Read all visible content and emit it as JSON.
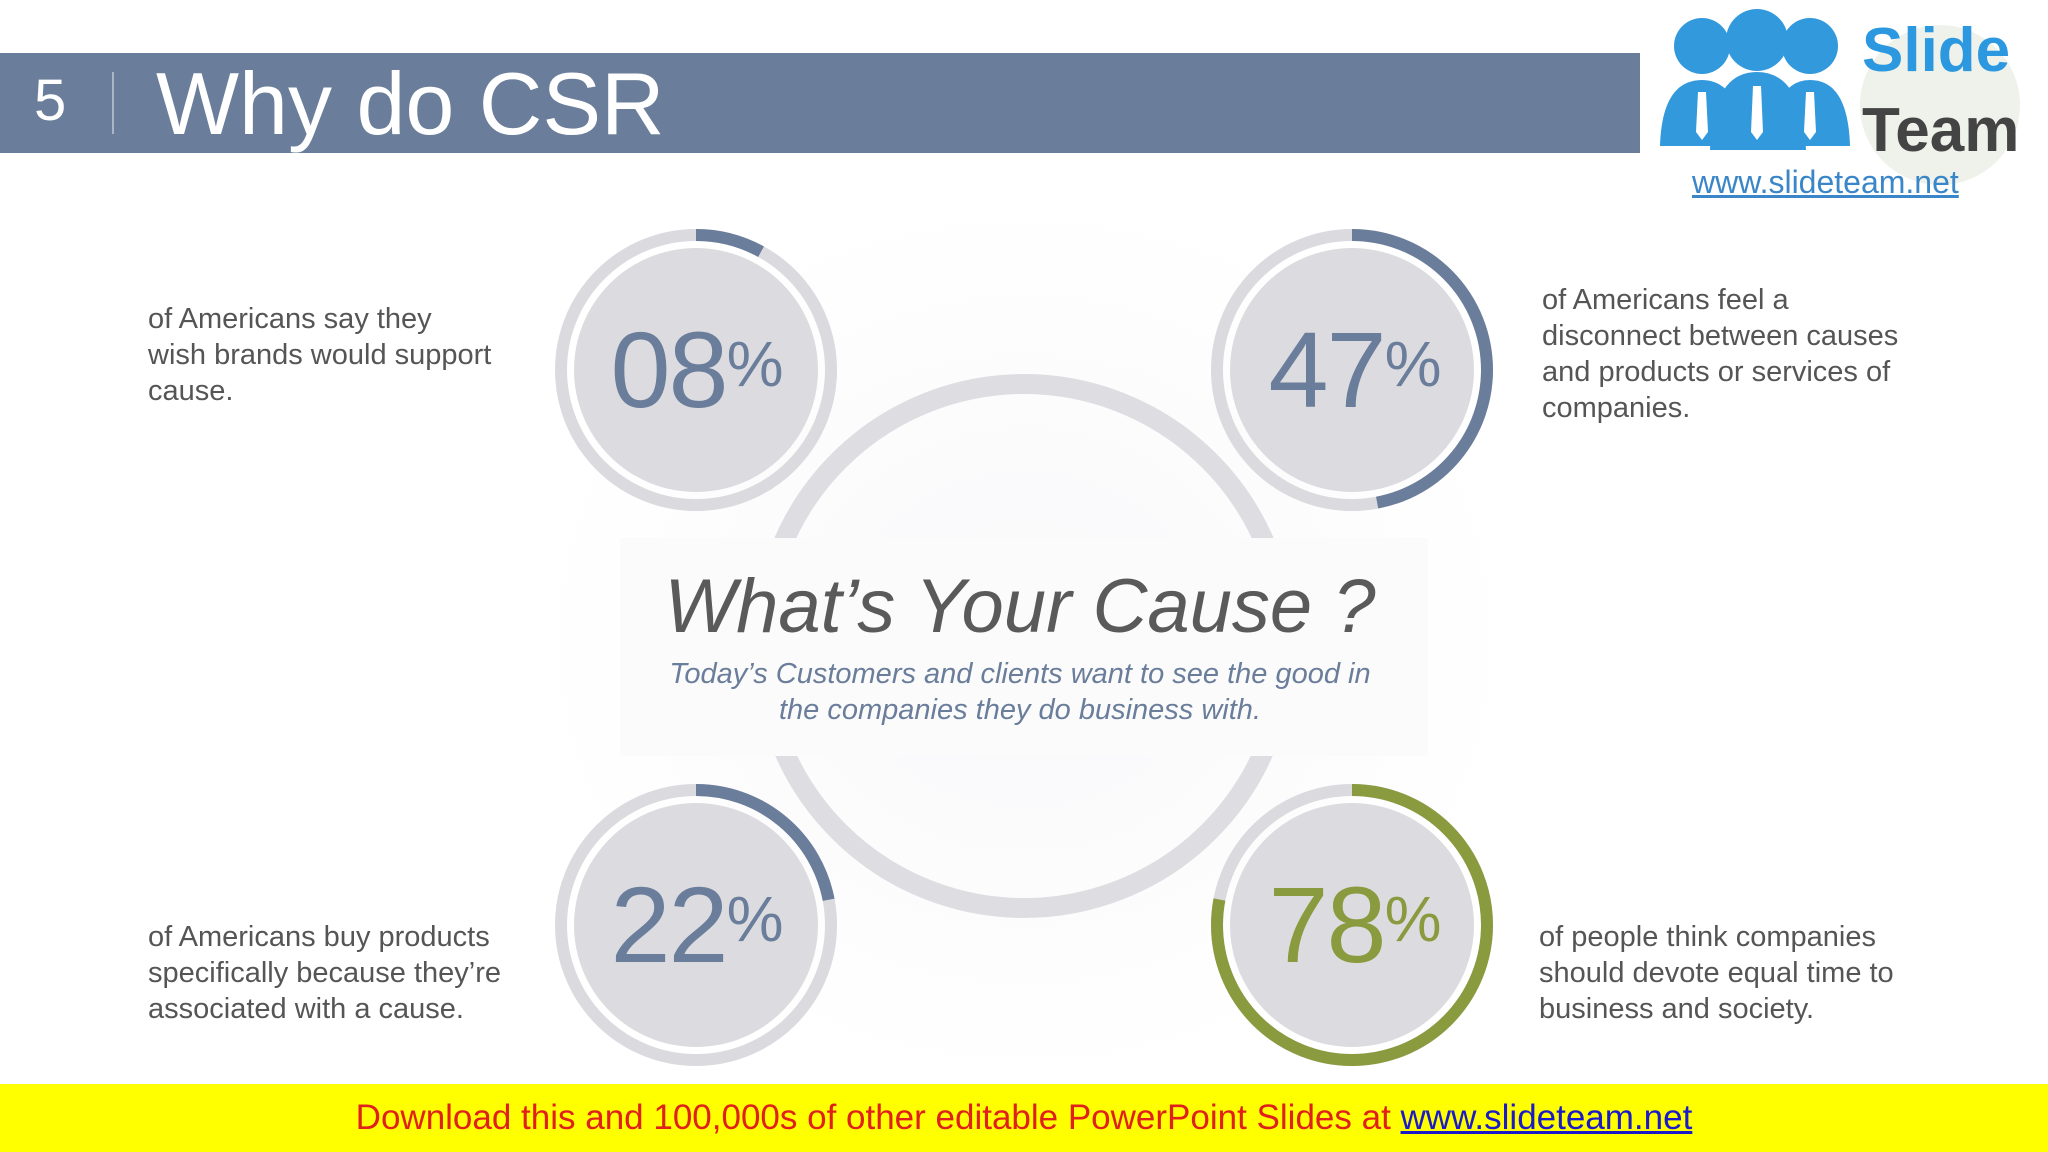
{
  "header": {
    "slide_number": "5",
    "title": "Why do CSR"
  },
  "logo": {
    "word1": "Slide",
    "word2": "Team",
    "url": "www.slideteam.net"
  },
  "center": {
    "title": "What’s Your Cause ?",
    "subtitle_line1": "Today’s Customers and clients want to see the good in",
    "subtitle_line2": "the companies they do business with."
  },
  "stats": [
    {
      "value": "08",
      "sign": "%",
      "fraction": 0.08,
      "color": "#6a7d9a",
      "lines": [
        "of Americans say they",
        "wish brands would support",
        "cause."
      ]
    },
    {
      "value": "47",
      "sign": "%",
      "fraction": 0.47,
      "color": "#6a7d9a",
      "lines": [
        "of Americans feel a",
        "disconnect between causes",
        "and products or services of",
        "companies."
      ]
    },
    {
      "value": "22",
      "sign": "%",
      "fraction": 0.22,
      "color": "#6a7d9a",
      "lines": [
        "of Americans buy products",
        "specifically because they’re",
        "associated with a cause."
      ]
    },
    {
      "value": "78",
      "sign": "%",
      "fraction": 0.78,
      "color": "#8a9a3e",
      "lines": [
        "of people think companies",
        "should devote equal time to",
        "business and society."
      ]
    }
  ],
  "footer": {
    "text": "Download this and 100,000s of other editable PowerPoint Slides at ",
    "link": "www.slideteam.net"
  }
}
